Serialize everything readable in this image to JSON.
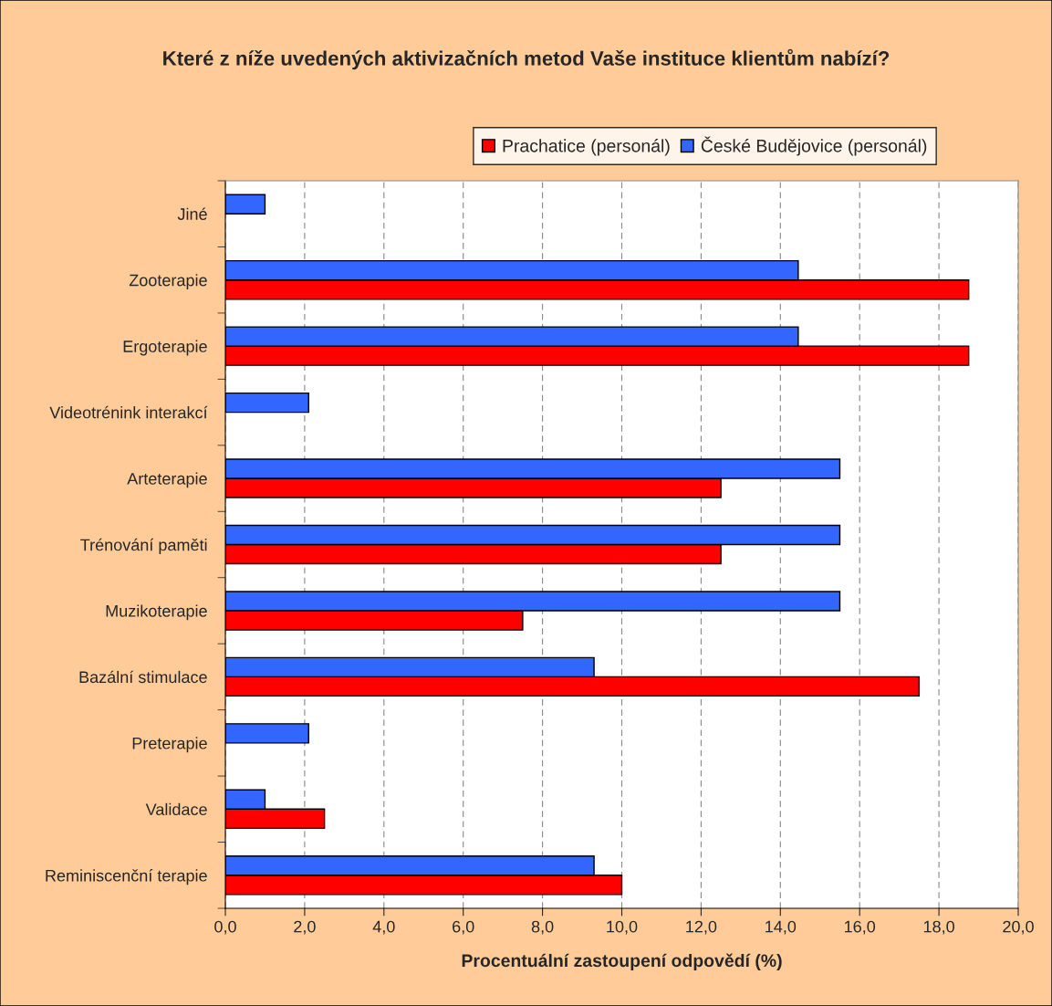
{
  "chart_data": {
    "type": "bar",
    "orientation": "horizontal",
    "title": "Které z níže uvedených aktivizačních metod Vaše instituce klientům nabízí?",
    "xlabel": "Procentuální zastoupení odpovědí (%)",
    "categories": [
      "Jiné",
      "Zooterapie",
      "Ergoterapie",
      "Videotrénink interakcí",
      "Arteterapie",
      "Trénování paměti",
      "Muzikoterapie",
      "Bazální stimulace",
      "Preterapie",
      "Validace",
      "Reminiscenční terapie"
    ],
    "series": [
      {
        "name": "Prachatice (personál)",
        "color": "#ff0000",
        "values": [
          null,
          18.75,
          18.75,
          null,
          12.5,
          12.5,
          7.5,
          17.5,
          null,
          2.5,
          10.0
        ]
      },
      {
        "name": "České Budějovice (personál)",
        "color": "#3366ff",
        "values": [
          1.0,
          14.45,
          14.45,
          2.1,
          15.5,
          15.5,
          15.5,
          9.3,
          2.1,
          1.0,
          9.3
        ]
      }
    ],
    "xlim": [
      0,
      20
    ],
    "xticks": [
      {
        "value": 0,
        "label": "0,0"
      },
      {
        "value": 2,
        "label": "2,0"
      },
      {
        "value": 4,
        "label": "4,0"
      },
      {
        "value": 6,
        "label": "6,0"
      },
      {
        "value": 8,
        "label": "8,0"
      },
      {
        "value": 10,
        "label": "10,0"
      },
      {
        "value": 12,
        "label": "12,0"
      },
      {
        "value": 14,
        "label": "14,0"
      },
      {
        "value": 16,
        "label": "16,0"
      },
      {
        "value": 18,
        "label": "18,0"
      },
      {
        "value": 20,
        "label": "20,0"
      }
    ],
    "grid": "x",
    "legend": "top"
  }
}
